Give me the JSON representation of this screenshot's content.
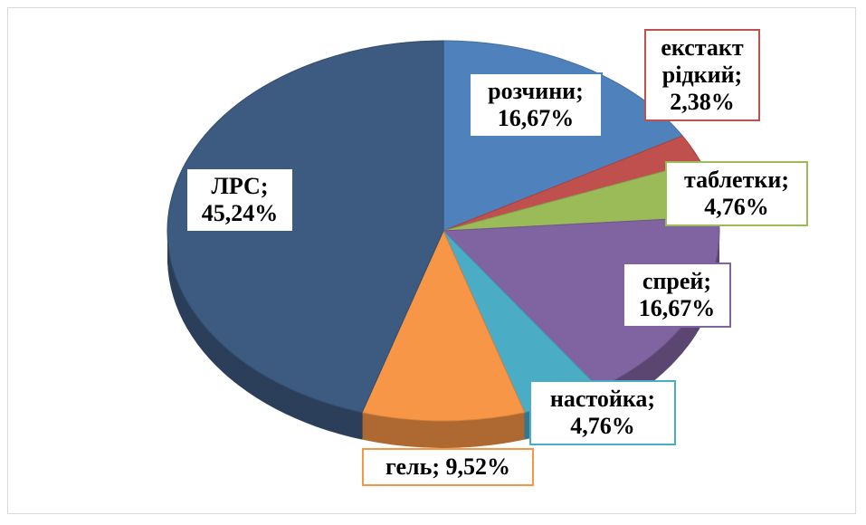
{
  "chart_data": {
    "type": "pie",
    "categories": [
      "розчини",
      "екстакт рідкий",
      "таблетки",
      "спрей",
      "настойка",
      "гель",
      "ЛРС"
    ],
    "values": [
      16.67,
      2.38,
      4.76,
      16.67,
      4.76,
      9.52,
      45.24
    ],
    "value_labels": [
      "16,67%",
      "2,38%",
      "4,76%",
      "16,67%",
      "4,76%",
      "9,52%",
      "45,24%"
    ],
    "label_separator": ";",
    "colors": [
      "#4f81bd",
      "#c0504d",
      "#9bbb59",
      "#8064a2",
      "#4bacc6",
      "#f79646",
      "#3d5a80"
    ]
  }
}
